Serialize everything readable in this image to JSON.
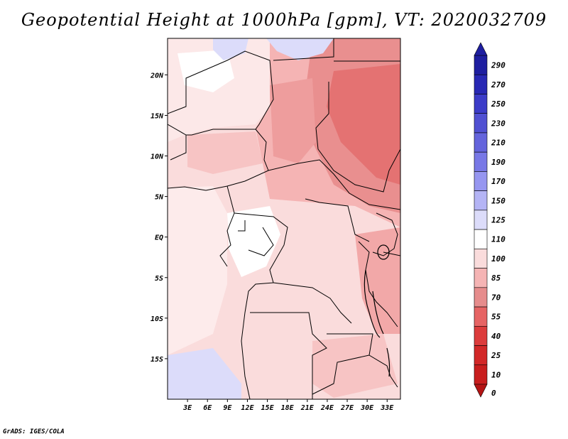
{
  "title": "Geopotential Height at 1000hPa [gpm], VT: 2020032709",
  "footer": "GrADS: IGES/COLA",
  "map": {
    "lat_labels": [
      "20N",
      "15N",
      "10N",
      "5N",
      "EQ",
      "5S",
      "10S",
      "15S"
    ],
    "lon_labels": [
      "3E",
      "6E",
      "9E",
      "12E",
      "15E",
      "18E",
      "21E",
      "24E",
      "27E",
      "30E",
      "33E"
    ],
    "extent": {
      "lon_min": 0,
      "lon_max": 35,
      "lat_min": -20,
      "lat_max": 24.5
    }
  },
  "colorbar": {
    "levels": [
      "290",
      "270",
      "250",
      "230",
      "210",
      "190",
      "170",
      "150",
      "125",
      "110",
      "100",
      "85",
      "70",
      "55",
      "40",
      "25",
      "10",
      "0"
    ],
    "colors": [
      "#1e1ea0",
      "#2828b4",
      "#3c3cc8",
      "#5050d2",
      "#6464dc",
      "#7878e6",
      "#9696f0",
      "#b4b4f5",
      "#dcdcfa",
      "#ffffff",
      "#fadcdc",
      "#f5b4b4",
      "#e68c8c",
      "#e66464",
      "#dc3c3c",
      "#d22828",
      "#c81e1e",
      "#b41414"
    ]
  }
}
